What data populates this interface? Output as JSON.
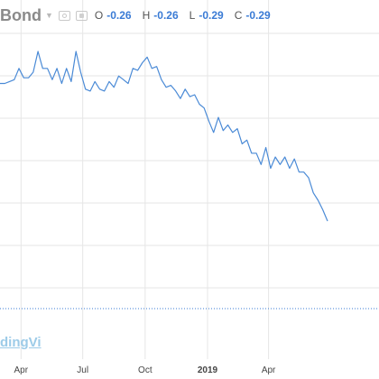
{
  "header": {
    "symbol_title": "Bond",
    "ohlc": [
      {
        "label": "O",
        "value": "-0.26"
      },
      {
        "label": "H",
        "value": "-0.26"
      },
      {
        "label": "L",
        "value": "-0.29"
      },
      {
        "label": "C",
        "value": "-0.29"
      }
    ]
  },
  "watermark": "dingVi",
  "colors": {
    "line": "#4a8ad6",
    "grid": "#e6e6e6",
    "baseline": "#3a7bd5",
    "ohlc_value": "#3a7bd5"
  },
  "chart_data": {
    "type": "line",
    "x_tick_labels": [
      "Apr",
      "Jul",
      "Oct",
      "2019",
      "Apr"
    ],
    "y_tick_labels": [],
    "grid": true,
    "legend": "none",
    "series": [
      {
        "x": [
          "2018-03-01",
          "2018-03-08",
          "2018-03-15",
          "2018-03-22",
          "2018-03-29",
          "2018-04-05",
          "2018-04-12",
          "2018-04-19",
          "2018-04-26",
          "2018-05-03",
          "2018-05-10",
          "2018-05-17",
          "2018-05-24",
          "2018-05-31",
          "2018-06-07",
          "2018-06-14",
          "2018-06-21",
          "2018-06-28",
          "2018-07-05",
          "2018-07-12",
          "2018-07-19",
          "2018-07-26",
          "2018-08-02",
          "2018-08-09",
          "2018-08-16",
          "2018-08-23",
          "2018-08-30",
          "2018-09-06",
          "2018-09-13",
          "2018-09-20",
          "2018-09-27",
          "2018-10-04",
          "2018-10-11",
          "2018-10-18",
          "2018-10-25",
          "2018-11-01",
          "2018-11-08",
          "2018-11-15",
          "2018-11-22",
          "2018-11-29",
          "2018-12-06",
          "2018-12-13",
          "2018-12-20",
          "2018-12-27",
          "2019-01-03",
          "2019-01-10",
          "2019-01-17",
          "2019-01-24",
          "2019-01-31",
          "2019-02-07",
          "2019-02-14",
          "2019-02-21",
          "2019-02-28",
          "2019-03-07",
          "2019-03-14",
          "2019-03-21",
          "2019-03-28",
          "2019-04-04",
          "2019-04-11",
          "2019-04-18",
          "2019-04-25",
          "2019-05-02",
          "2019-05-09",
          "2019-05-16",
          "2019-05-23",
          "2019-05-30",
          "2019-06-06",
          "2019-06-13",
          "2019-06-20",
          "2019-06-27"
        ],
        "y": [
          0.47,
          0.47,
          0.48,
          0.49,
          0.55,
          0.5,
          0.5,
          0.53,
          0.64,
          0.55,
          0.55,
          0.49,
          0.55,
          0.47,
          0.55,
          0.48,
          0.64,
          0.53,
          0.44,
          0.43,
          0.48,
          0.44,
          0.43,
          0.48,
          0.45,
          0.51,
          0.49,
          0.47,
          0.55,
          0.54,
          0.58,
          0.61,
          0.55,
          0.56,
          0.49,
          0.45,
          0.46,
          0.43,
          0.39,
          0.44,
          0.4,
          0.41,
          0.36,
          0.34,
          0.27,
          0.21,
          0.29,
          0.22,
          0.25,
          0.21,
          0.23,
          0.15,
          0.17,
          0.1,
          0.1,
          0.04,
          0.13,
          0.02,
          0.08,
          0.04,
          0.08,
          0.02,
          0.07,
          0.0,
          0.0,
          -0.03,
          -0.11,
          -0.15,
          -0.2,
          -0.26
        ]
      }
    ]
  }
}
